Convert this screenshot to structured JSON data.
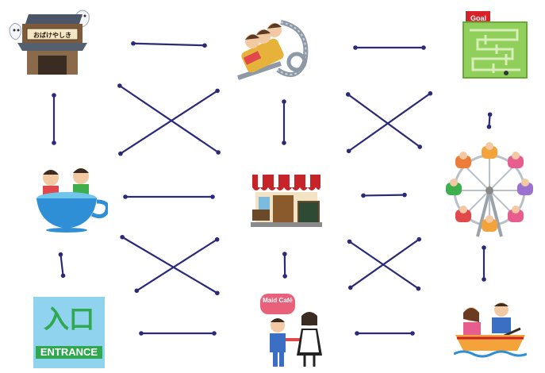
{
  "colors": {
    "line": "#2a2a78",
    "background": "#ffffff",
    "entrance_sign": "#8fd3ee",
    "entrance_text": "#2fa84f",
    "maze": "#8fcf5a",
    "maid_cafe_sign": "#e8607a",
    "goal_flag": "#d8222a"
  },
  "nodes": [
    {
      "id": "haunted_house",
      "icon": "haunted-house-icon",
      "sign_text": "おばけやしき"
    },
    {
      "id": "roller_coaster",
      "icon": "roller-coaster-icon"
    },
    {
      "id": "maze_goal",
      "icon": "maze-icon",
      "sign_text": "Goal"
    },
    {
      "id": "teacup_ride",
      "icon": "teacup-ride-icon"
    },
    {
      "id": "shop_stall",
      "icon": "shop-stall-icon"
    },
    {
      "id": "ferris_wheel",
      "icon": "ferris-wheel-icon"
    },
    {
      "id": "entrance",
      "icon": "entrance-sign-icon",
      "sign_text": "入口",
      "sign_subtext": "ENTRANCE"
    },
    {
      "id": "maid_cafe",
      "icon": "maid-cafe-icon",
      "sign_text": "Maid Café"
    },
    {
      "id": "rowboat",
      "icon": "rowboat-icon"
    }
  ],
  "connections": [
    [
      "haunted_house",
      "roller_coaster"
    ],
    [
      "roller_coaster",
      "maze_goal"
    ],
    [
      "haunted_house",
      "teacup_ride"
    ],
    [
      "roller_coaster",
      "shop_stall"
    ],
    [
      "maze_goal",
      "ferris_wheel"
    ],
    [
      "haunted_house",
      "shop_stall"
    ],
    [
      "roller_coaster",
      "teacup_ride"
    ],
    [
      "roller_coaster",
      "ferris_wheel"
    ],
    [
      "maze_goal",
      "shop_stall"
    ],
    [
      "teacup_ride",
      "shop_stall"
    ],
    [
      "shop_stall",
      "ferris_wheel"
    ],
    [
      "teacup_ride",
      "entrance"
    ],
    [
      "shop_stall",
      "maid_cafe"
    ],
    [
      "ferris_wheel",
      "rowboat"
    ],
    [
      "teacup_ride",
      "maid_cafe"
    ],
    [
      "shop_stall",
      "entrance"
    ],
    [
      "shop_stall",
      "rowboat"
    ],
    [
      "ferris_wheel",
      "maid_cafe"
    ],
    [
      "entrance",
      "maid_cafe"
    ],
    [
      "maid_cafe",
      "rowboat"
    ]
  ]
}
